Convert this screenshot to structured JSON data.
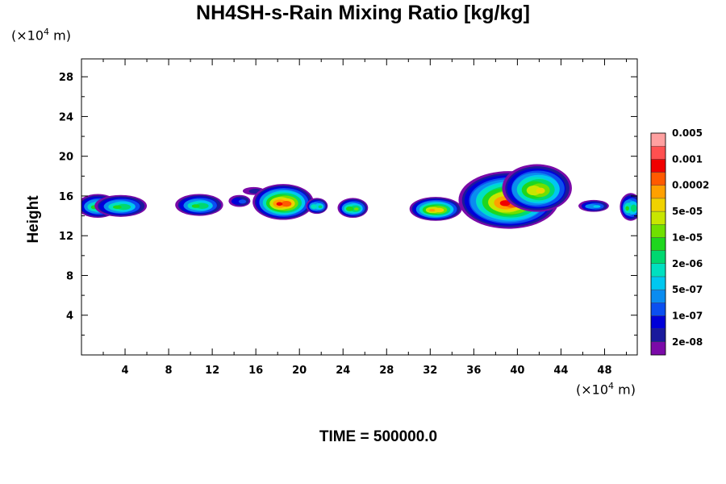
{
  "chart_data": {
    "type": "heatmap",
    "title": "NH4SH-s-Rain Mixing Ratio [kg/kg]",
    "ylabel": "Height",
    "xlabel": "",
    "x_unit_prefix": "(×10",
    "x_unit_exp": "4",
    "x_unit_suffix": " m)",
    "y_unit_prefix": "(×10",
    "y_unit_exp": "4",
    "y_unit_suffix": " m)",
    "xlim": [
      0,
      51
    ],
    "ylim": [
      0,
      29.8
    ],
    "x_ticks": [
      "4",
      "8",
      "12",
      "16",
      "20",
      "24",
      "28",
      "32",
      "36",
      "40",
      "44",
      "48"
    ],
    "y_ticks": [
      "4",
      "8",
      "12",
      "16",
      "20",
      "24",
      "28"
    ],
    "colorbar": {
      "colors": [
        "#7b0aa8",
        "#1a1a9c",
        "#0000d8",
        "#0b4ff0",
        "#0a8cf0",
        "#00c8f0",
        "#00e0c0",
        "#00d870",
        "#1ed71e",
        "#70e000",
        "#c8e600",
        "#f0d200",
        "#ffa000",
        "#ff5a00",
        "#f00000",
        "#ff5050",
        "#ffa0a0"
      ],
      "labels": [
        "2e-08",
        "1e-07",
        "5e-07",
        "2e-06",
        "1e-05",
        "5e-05",
        "0.0002",
        "0.001",
        "0.005"
      ]
    },
    "blobs": [
      {
        "x": 1.5,
        "y": 15.0,
        "rx": 1.9,
        "ry": 1.2,
        "level": 8
      },
      {
        "x": 3.6,
        "y": 15.0,
        "rx": 2.4,
        "ry": 1.1,
        "level": 8
      },
      {
        "x": 10.8,
        "y": 15.1,
        "rx": 2.2,
        "ry": 1.1,
        "level": 8
      },
      {
        "x": 14.5,
        "y": 15.5,
        "rx": 1.0,
        "ry": 0.6,
        "level": 3
      },
      {
        "x": 15.8,
        "y": 16.5,
        "rx": 1.0,
        "ry": 0.4,
        "level": 1
      },
      {
        "x": 18.5,
        "y": 15.4,
        "rx": 2.8,
        "ry": 1.8,
        "level": 14
      },
      {
        "x": 21.6,
        "y": 15.0,
        "rx": 1.0,
        "ry": 0.8,
        "level": 7
      },
      {
        "x": 24.9,
        "y": 14.8,
        "rx": 1.4,
        "ry": 1.0,
        "level": 9
      },
      {
        "x": 32.5,
        "y": 14.7,
        "rx": 2.4,
        "ry": 1.2,
        "level": 12
      },
      {
        "x": 39.2,
        "y": 15.6,
        "rx": 4.6,
        "ry": 2.9,
        "level": 14
      },
      {
        "x": 41.8,
        "y": 16.8,
        "rx": 3.2,
        "ry": 2.4,
        "level": 11
      },
      {
        "x": 47.0,
        "y": 15.0,
        "rx": 1.4,
        "ry": 0.6,
        "level": 5
      },
      {
        "x": 50.4,
        "y": 14.9,
        "rx": 1.0,
        "ry": 1.4,
        "level": 8
      }
    ]
  },
  "footer": {
    "time_text": "TIME = 500000.0"
  }
}
